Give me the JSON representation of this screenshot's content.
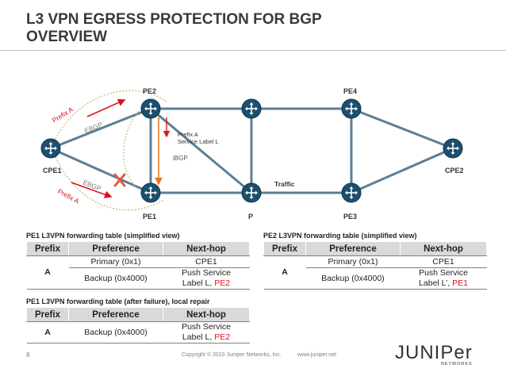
{
  "title_line1": "L3 VPN EGRESS PROTECTION FOR BGP",
  "title_line2": "OVERVIEW",
  "diagram": {
    "nodes": {
      "pe2": "PE2",
      "pe4": "PE4",
      "cpe1": "CPE1",
      "cpe2": "CPE2",
      "pe1": "PE1",
      "p": "P",
      "pe3": "PE3"
    },
    "labels": {
      "prefix_a_top": "Prefix A",
      "ebgp_top": "EBGP",
      "ebgp_bottom": "EBGP",
      "prefix_a_bottom": "Prefix A",
      "prefix_a_service_1": "Prefix A",
      "prefix_a_service_2": "Service Label L",
      "ibgp": "iBGP",
      "traffic": "Traffic"
    },
    "colors": {
      "link": "#5b7f95",
      "red": "#d9141c",
      "orange": "#e87722",
      "router": "#1d4f6e"
    }
  },
  "table_pe1": {
    "caption": "PE1 L3VPN forwarding table (simplified view)",
    "headers": [
      "Prefix",
      "Preference",
      "Next-hop"
    ],
    "prefix": "A",
    "row1_pref": "Primary (0x1)",
    "row1_nh": "CPE1",
    "row2_pref": "Backup (0x4000)",
    "row2_nh_1": "Push Service",
    "row2_nh_2": "Label L, ",
    "row2_nh_red": "PE2"
  },
  "table_pe2": {
    "caption": "PE2 L3VPN forwarding table (simplified view)",
    "headers": [
      "Prefix",
      "Preference",
      "Next-hop"
    ],
    "prefix": "A",
    "row1_pref": "Primary (0x1)",
    "row1_nh": "CPE1",
    "row2_pref": "Backup (0x4000)",
    "row2_nh_1": "Push Service",
    "row2_nh_2": "Label L’, ",
    "row2_nh_red": "PE1"
  },
  "table_pe1_fail": {
    "caption": "PE1 L3VPN forwarding table (after failure), local repair",
    "headers": [
      "Prefix",
      "Preference",
      "Next-hop"
    ],
    "prefix": "A",
    "row1_pref": "Backup (0x4000)",
    "row1_nh_1": "Push Service",
    "row1_nh_2": "Label L, ",
    "row1_nh_red": "PE2"
  },
  "footer": {
    "page": "8",
    "copyright": "Copyright © 2010 Juniper Networks, Inc.",
    "url": "www.juniper.net",
    "logo_word": "JUNIPer",
    "logo_sub": "NETWORKS"
  }
}
